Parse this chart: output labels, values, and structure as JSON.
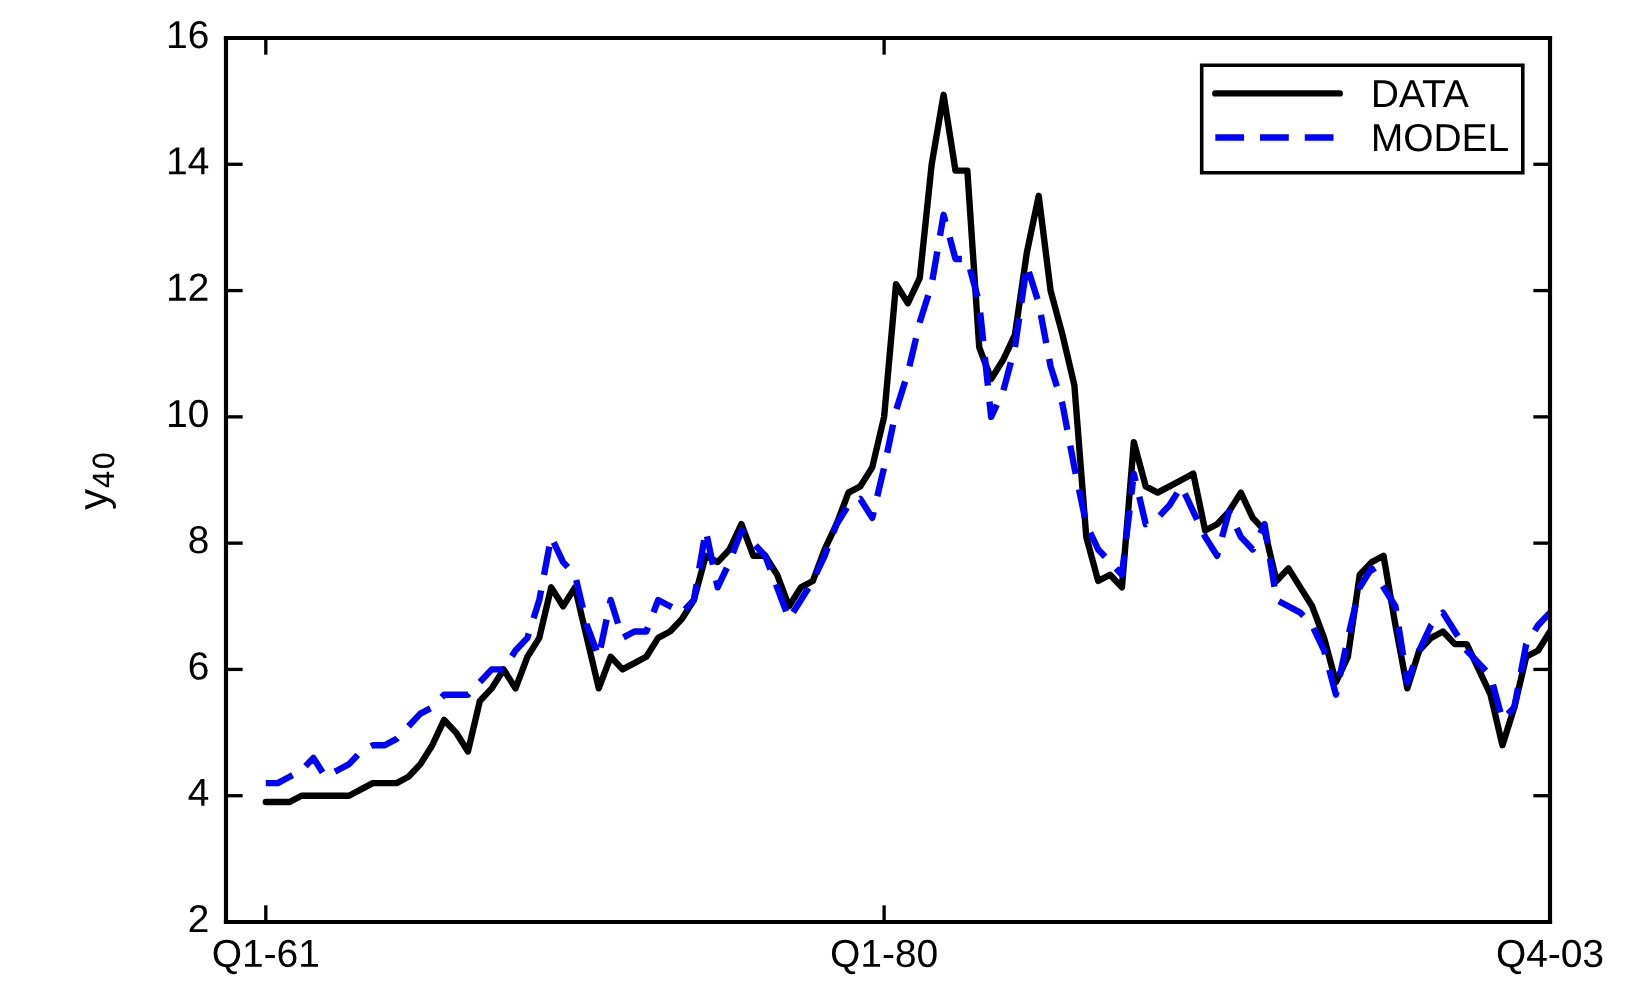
{
  "chart_data": {
    "type": "line",
    "ylabel": "y$_{40}$",
    "categories": [
      "Q1-61",
      null,
      null,
      null,
      null,
      null,
      null,
      null,
      null,
      null,
      null,
      null,
      null,
      null,
      null,
      null,
      null,
      null,
      null,
      null,
      null,
      null,
      null,
      null,
      null,
      null,
      null,
      null,
      null,
      null,
      null,
      null,
      null,
      null,
      null,
      null,
      null,
      null,
      null,
      null,
      null,
      null,
      null,
      null,
      null,
      null,
      null,
      null,
      null,
      null,
      null,
      null,
      "Q1-80",
      null,
      null,
      null,
      null,
      null,
      null,
      null,
      null,
      null,
      null,
      null,
      null,
      null,
      null,
      null,
      null,
      null,
      null,
      null,
      null,
      null,
      null,
      null,
      null,
      null,
      null,
      null,
      null,
      null,
      null,
      null,
      null,
      null,
      null,
      null,
      null,
      null,
      null,
      null,
      null,
      null,
      null,
      null,
      null,
      null,
      null,
      null,
      null,
      null,
      null,
      null,
      null,
      null,
      null,
      null,
      "Q4-03"
    ],
    "series": [
      {
        "name": "DATA",
        "color": "#000000",
        "line_style": "solid",
        "values": [
          3.9,
          3.9,
          3.9,
          4.0,
          4.0,
          4.0,
          4.0,
          4.0,
          4.1,
          4.2,
          4.2,
          4.2,
          4.3,
          4.5,
          4.8,
          5.2,
          5.0,
          4.7,
          5.5,
          5.7,
          6.0,
          5.7,
          6.2,
          6.5,
          7.3,
          7.0,
          7.3,
          6.5,
          5.7,
          6.2,
          6.0,
          6.1,
          6.2,
          6.5,
          6.6,
          6.8,
          7.1,
          7.8,
          7.7,
          7.9,
          8.3,
          7.8,
          7.8,
          7.5,
          7.0,
          7.3,
          7.4,
          7.9,
          8.3,
          8.8,
          8.9,
          9.2,
          10.0,
          12.1,
          11.8,
          12.2,
          14.0,
          15.1,
          13.9,
          13.9,
          11.1,
          10.6,
          10.9,
          11.3,
          12.6,
          13.5,
          12.0,
          11.3,
          10.5,
          8.1,
          7.4,
          7.5,
          7.3,
          9.6,
          8.9,
          8.8,
          8.9,
          9.0,
          9.1,
          8.2,
          8.3,
          8.5,
          8.8,
          8.4,
          8.2,
          7.4,
          7.6,
          7.3,
          7.0,
          6.5,
          5.8,
          6.2,
          7.5,
          7.7,
          7.8,
          6.7,
          5.7,
          6.3,
          6.5,
          6.6,
          6.4,
          6.4,
          6.0,
          5.6,
          4.8,
          5.4,
          6.2,
          6.3,
          6.6
        ]
      },
      {
        "name": "MODEL",
        "color": "#0000ff",
        "line_style": "dashed",
        "values": [
          4.2,
          4.2,
          4.3,
          4.4,
          4.6,
          4.3,
          4.4,
          4.5,
          4.7,
          4.8,
          4.8,
          4.9,
          5.1,
          5.3,
          5.4,
          5.6,
          5.6,
          5.6,
          5.8,
          6.0,
          6.0,
          6.3,
          6.5,
          7.1,
          8.1,
          7.7,
          7.5,
          6.7,
          6.2,
          7.1,
          6.5,
          6.6,
          6.6,
          7.1,
          7.0,
          6.9,
          7.1,
          8.2,
          7.3,
          7.7,
          8.2,
          8.0,
          7.8,
          7.3,
          6.8,
          7.1,
          7.4,
          7.8,
          8.3,
          8.6,
          8.7,
          8.4,
          9.2,
          10.1,
          10.7,
          11.5,
          12.1,
          13.2,
          12.5,
          12.5,
          11.8,
          10.0,
          10.4,
          11.1,
          12.4,
          11.8,
          10.8,
          10.2,
          9.2,
          8.3,
          7.9,
          7.7,
          7.5,
          9.1,
          8.3,
          8.4,
          8.6,
          8.9,
          8.5,
          8.1,
          7.8,
          8.5,
          8.1,
          7.9,
          8.3,
          7.1,
          7.0,
          6.9,
          6.7,
          6.3,
          5.6,
          6.5,
          7.3,
          7.6,
          7.3,
          7.0,
          5.8,
          6.3,
          6.7,
          6.9,
          6.6,
          6.3,
          6.1,
          5.9,
          5.2,
          5.4,
          6.4,
          6.7,
          6.9
        ]
      }
    ],
    "ylim": [
      2,
      16
    ],
    "yticks": [
      2,
      4,
      6,
      8,
      10,
      12,
      14,
      16
    ],
    "legend": "top right"
  }
}
